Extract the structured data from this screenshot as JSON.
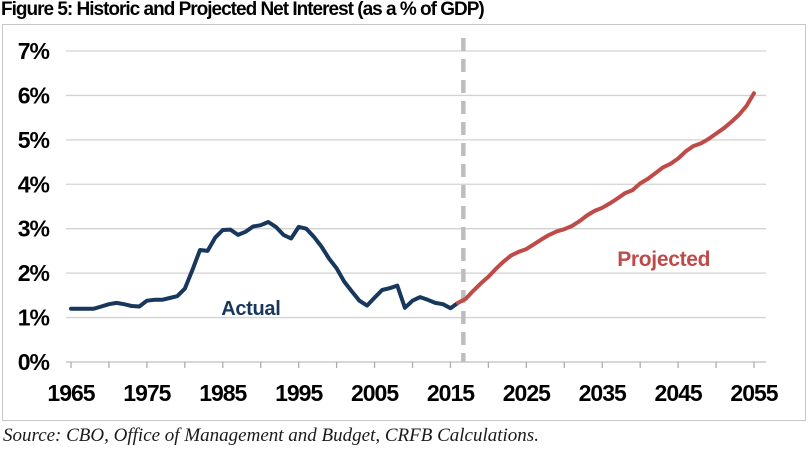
{
  "page": {
    "title": "Figure 5: Historic and Projected Net Interest (as a % of GDP)",
    "source_note": "Source: CBO, Office of Management and Budget, CRFB Calculations."
  },
  "colors": {
    "actual": "#17375D",
    "projected": "#BE4B48",
    "gridline": "#D2D2D2",
    "axis_line": "#BFBFBF",
    "tick_mark": "#ADADAD",
    "divider": "#BDBDBD",
    "axis_label_text": "#000000"
  },
  "chart_data": {
    "type": "line",
    "title": "Figure 5: Historic and Projected Net Interest (as a % of GDP)",
    "xlabel": "",
    "ylabel": "",
    "xlim": [
      1965,
      2055
    ],
    "ylim": [
      0,
      7
    ],
    "grid": "horizontal",
    "legend": "inline-series-labels",
    "divider_year": 2016.7,
    "divider_style": "dashed-vertical-gray",
    "y_axis": {
      "ticks": [
        {
          "label": "0%",
          "value": 0
        },
        {
          "label": "1%",
          "value": 1
        },
        {
          "label": "2%",
          "value": 2
        },
        {
          "label": "3%",
          "value": 3
        },
        {
          "label": "4%",
          "value": 4
        },
        {
          "label": "5%",
          "value": 5
        },
        {
          "label": "6%",
          "value": 6
        },
        {
          "label": "7%",
          "value": 7
        }
      ]
    },
    "x_axis": {
      "minor_tick_step": 5,
      "ticks": [
        {
          "label": "1965",
          "year": 1965
        },
        {
          "label": "1975",
          "year": 1975
        },
        {
          "label": "1985",
          "year": 1985
        },
        {
          "label": "1995",
          "year": 1995
        },
        {
          "label": "2005",
          "year": 2005
        },
        {
          "label": "2015",
          "year": 2015
        },
        {
          "label": "2025",
          "year": 2025
        },
        {
          "label": "2035",
          "year": 2035
        },
        {
          "label": "2045",
          "year": 2045
        },
        {
          "label": "2055",
          "year": 2055
        }
      ]
    },
    "series": [
      {
        "name": "Actual",
        "color": "#17375D",
        "label": {
          "year": 1988.7,
          "value": 1.06,
          "size": 20
        },
        "years": [
          1965,
          1966,
          1967,
          1968,
          1969,
          1970,
          1971,
          1972,
          1973,
          1974,
          1975,
          1976,
          1977,
          1978,
          1979,
          1980,
          1981,
          1982,
          1983,
          1984,
          1985,
          1986,
          1987,
          1988,
          1989,
          1990,
          1991,
          1992,
          1993,
          1994,
          1995,
          1996,
          1997,
          1998,
          1999,
          2000,
          2001,
          2002,
          2003,
          2004,
          2005,
          2006,
          2007,
          2008,
          2009,
          2010,
          2011,
          2012,
          2013,
          2014,
          2015,
          2016
        ],
        "values": [
          1.2,
          1.2,
          1.2,
          1.2,
          1.25,
          1.3,
          1.33,
          1.3,
          1.26,
          1.25,
          1.38,
          1.4,
          1.4,
          1.44,
          1.48,
          1.65,
          2.07,
          2.52,
          2.5,
          2.8,
          2.97,
          2.98,
          2.86,
          2.93,
          3.05,
          3.08,
          3.15,
          3.04,
          2.86,
          2.78,
          3.04,
          3.0,
          2.82,
          2.6,
          2.33,
          2.11,
          1.81,
          1.59,
          1.38,
          1.27,
          1.45,
          1.62,
          1.66,
          1.72,
          1.22,
          1.38,
          1.46,
          1.4,
          1.33,
          1.3,
          1.21,
          1.33
        ]
      },
      {
        "name": "Projected",
        "color": "#BE4B48",
        "label": {
          "year": 2043.1,
          "value": 2.16,
          "size": 21
        },
        "years": [
          2016,
          2017,
          2018,
          2019,
          2020,
          2021,
          2022,
          2023,
          2024,
          2025,
          2026,
          2027,
          2028,
          2029,
          2030,
          2031,
          2032,
          2033,
          2034,
          2035,
          2036,
          2037,
          2038,
          2039,
          2040,
          2041,
          2042,
          2043,
          2044,
          2045,
          2046,
          2047,
          2048,
          2049,
          2050,
          2051,
          2052,
          2053,
          2054,
          2055
        ],
        "values": [
          1.33,
          1.42,
          1.6,
          1.77,
          1.92,
          2.1,
          2.26,
          2.4,
          2.48,
          2.54,
          2.65,
          2.76,
          2.86,
          2.94,
          2.99,
          3.06,
          3.17,
          3.3,
          3.4,
          3.47,
          3.57,
          3.68,
          3.8,
          3.87,
          4.02,
          4.12,
          4.25,
          4.38,
          4.46,
          4.58,
          4.74,
          4.86,
          4.92,
          5.02,
          5.14,
          5.26,
          5.4,
          5.56,
          5.76,
          6.05
        ]
      }
    ]
  }
}
